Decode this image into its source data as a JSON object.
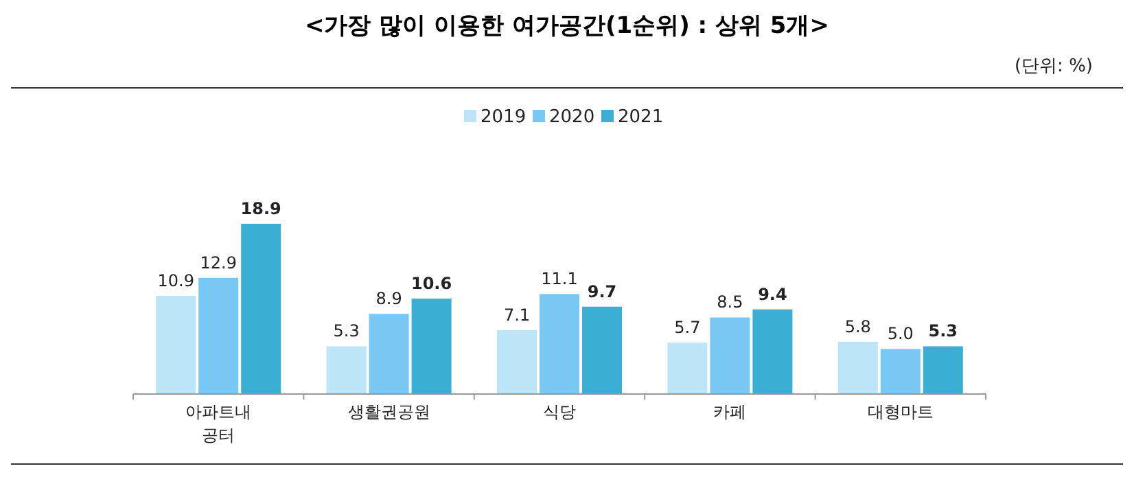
{
  "chart_data": {
    "type": "bar",
    "title": "<가장 많이 이용한 여가공간(1순위) : 상위 5개>",
    "subtitle": "(단위: %)",
    "categories": [
      "아파트내 공터",
      "생활권공원",
      "식당",
      "카페",
      "대형마트"
    ],
    "series": [
      {
        "name": "2019",
        "color": "#bde5f8",
        "values": [
          10.9,
          5.3,
          7.1,
          5.7,
          5.8
        ],
        "value_labels": [
          "10.9",
          "5.3",
          "7.1",
          "5.7",
          "5.8"
        ]
      },
      {
        "name": "2020",
        "color": "#78c8f3",
        "values": [
          12.9,
          8.9,
          11.1,
          8.5,
          5.0
        ],
        "value_labels": [
          "12.9",
          "8.9",
          "11.1",
          "8.5",
          "5.0"
        ]
      },
      {
        "name": "2021",
        "color": "#3aaed3",
        "values": [
          18.9,
          10.6,
          9.7,
          9.4,
          5.3
        ],
        "value_labels": [
          "18.9",
          "10.6",
          "9.7",
          "9.4",
          "5.3"
        ]
      }
    ],
    "legend": "top",
    "grid": false
  }
}
